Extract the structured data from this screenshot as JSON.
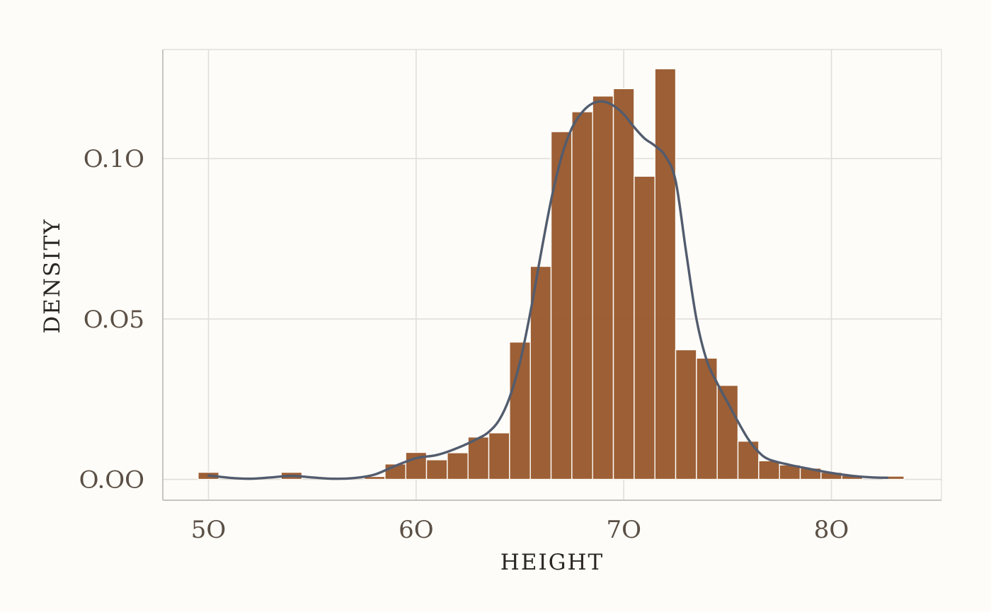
{
  "chart_data": {
    "type": "histogram",
    "xlabel": "HEIGHT",
    "ylabel": "DENSITY",
    "xlim": [
      47.8,
      85.3
    ],
    "ylim": [
      -0.0065,
      0.134
    ],
    "x_ticks": [
      50,
      60,
      70,
      80
    ],
    "x_tick_labels": [
      "5O",
      "6O",
      "7O",
      "8O"
    ],
    "y_ticks": [
      0.0,
      0.05,
      0.1
    ],
    "y_tick_labels": [
      "O.OO",
      "O.O5",
      "O.1O"
    ],
    "grid": true,
    "bin_width": 1.0,
    "bins": [
      {
        "x0": 49.5,
        "x1": 50.5,
        "density": 0.0022
      },
      {
        "x0": 53.5,
        "x1": 54.5,
        "density": 0.0022
      },
      {
        "x0": 57.5,
        "x1": 58.5,
        "density": 0.0009
      },
      {
        "x0": 58.5,
        "x1": 59.5,
        "density": 0.0048
      },
      {
        "x0": 59.5,
        "x1": 60.5,
        "density": 0.0084
      },
      {
        "x0": 60.5,
        "x1": 61.5,
        "density": 0.0061
      },
      {
        "x0": 61.5,
        "x1": 62.5,
        "density": 0.0083
      },
      {
        "x0": 62.5,
        "x1": 63.5,
        "density": 0.0132
      },
      {
        "x0": 63.5,
        "x1": 64.5,
        "density": 0.0145
      },
      {
        "x0": 64.5,
        "x1": 65.5,
        "density": 0.0428
      },
      {
        "x0": 65.5,
        "x1": 66.5,
        "density": 0.0664
      },
      {
        "x0": 66.5,
        "x1": 67.5,
        "density": 0.1084
      },
      {
        "x0": 67.5,
        "x1": 68.5,
        "density": 0.1146
      },
      {
        "x0": 68.5,
        "x1": 69.5,
        "density": 0.1195
      },
      {
        "x0": 69.5,
        "x1": 70.5,
        "density": 0.1218
      },
      {
        "x0": 70.5,
        "x1": 71.5,
        "density": 0.0945
      },
      {
        "x0": 71.5,
        "x1": 72.5,
        "density": 0.128
      },
      {
        "x0": 72.5,
        "x1": 73.5,
        "density": 0.0404
      },
      {
        "x0": 73.5,
        "x1": 74.5,
        "density": 0.0378
      },
      {
        "x0": 74.5,
        "x1": 75.5,
        "density": 0.0293
      },
      {
        "x0": 75.5,
        "x1": 76.5,
        "density": 0.0119
      },
      {
        "x0": 76.5,
        "x1": 77.5,
        "density": 0.0058
      },
      {
        "x0": 77.5,
        "x1": 78.5,
        "density": 0.0045
      },
      {
        "x0": 78.5,
        "x1": 79.5,
        "density": 0.0035
      },
      {
        "x0": 79.5,
        "x1": 80.5,
        "density": 0.0022
      },
      {
        "x0": 80.5,
        "x1": 81.5,
        "density": 0.0012
      },
      {
        "x0": 82.5,
        "x1": 83.5,
        "density": 0.001
      }
    ],
    "density_curve": {
      "x": [
        50,
        51,
        52,
        53,
        54,
        55,
        56,
        57,
        58,
        59,
        60,
        61,
        62,
        63,
        63.5,
        64,
        64.5,
        65,
        65.5,
        66,
        66.5,
        67,
        67.5,
        68,
        68.5,
        69,
        69.5,
        70,
        70.5,
        71,
        71.5,
        72,
        72.5,
        73,
        73.5,
        74,
        74.5,
        75,
        75.5,
        76,
        76.5,
        77,
        78,
        79,
        80,
        81,
        82,
        82.7
      ],
      "y": [
        0.0012,
        0.0005,
        0.0002,
        0.0006,
        0.0011,
        0.0006,
        0.0002,
        0.0004,
        0.0015,
        0.0042,
        0.0066,
        0.0076,
        0.0098,
        0.0128,
        0.0148,
        0.0185,
        0.0255,
        0.0365,
        0.052,
        0.07,
        0.087,
        0.1005,
        0.1095,
        0.1145,
        0.1172,
        0.1178,
        0.1165,
        0.1138,
        0.1098,
        0.1063,
        0.104,
        0.1008,
        0.093,
        0.071,
        0.05,
        0.037,
        0.03,
        0.024,
        0.018,
        0.0125,
        0.0085,
        0.0062,
        0.0045,
        0.0032,
        0.002,
        0.0011,
        0.0006,
        0.0005
      ]
    },
    "colors": {
      "bar_fill": "#9a5a2e",
      "bar_stroke": "#fdfcf8",
      "curve": "#525c6e",
      "grid": "#e2dfd9",
      "panel_border": "#c8c5c0",
      "background": "#fdfcf8"
    }
  }
}
